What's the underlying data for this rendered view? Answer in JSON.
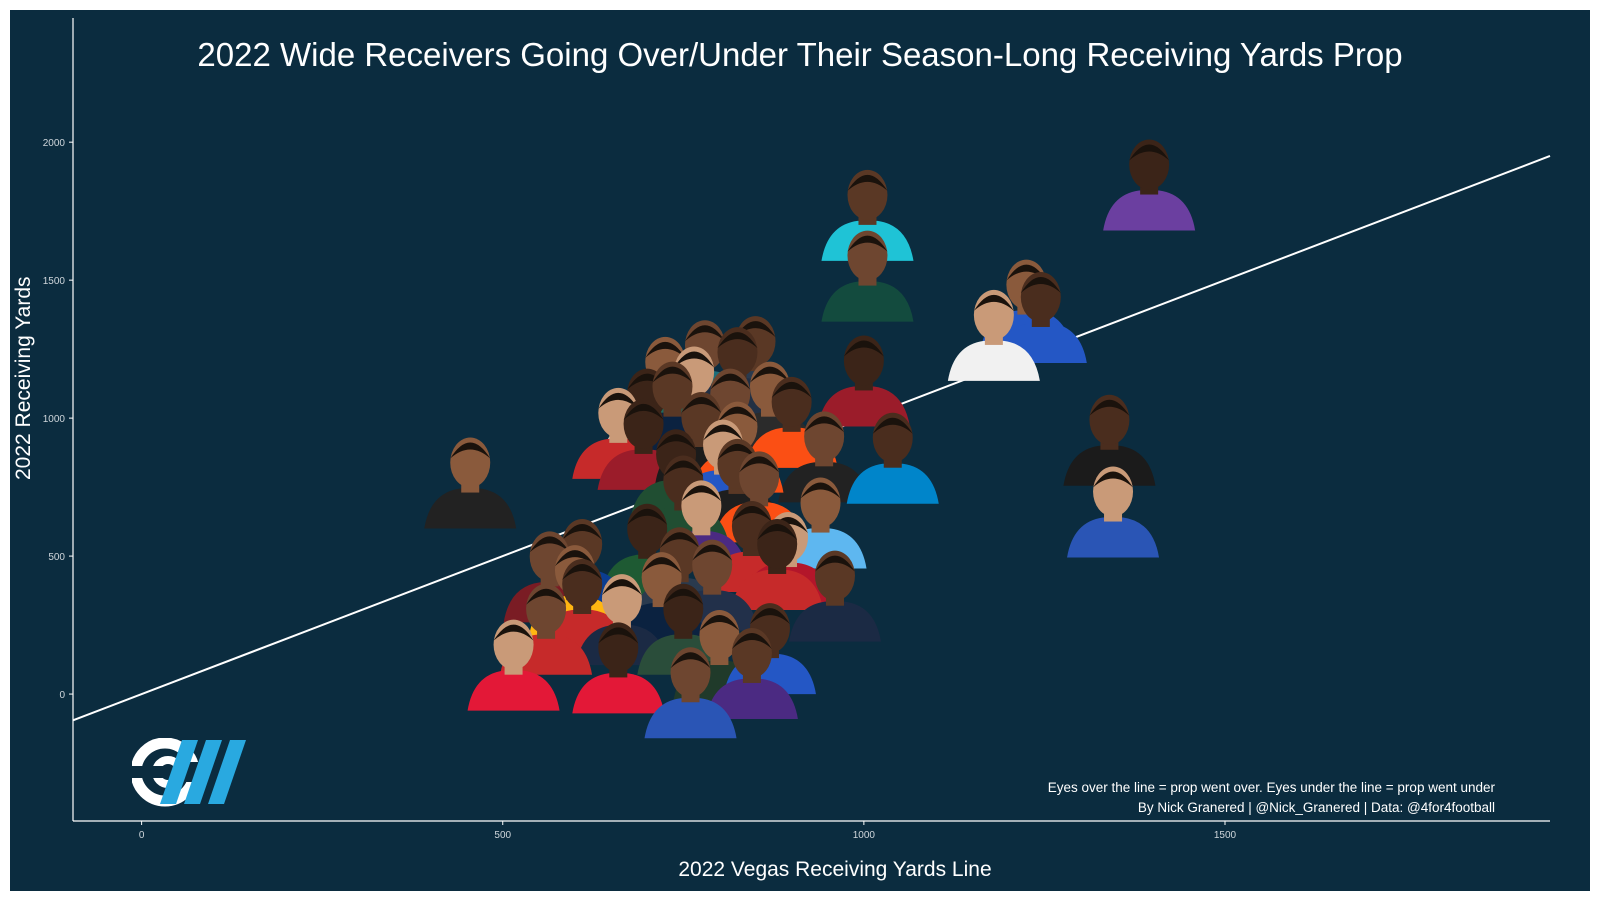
{
  "header": {
    "title": "2022 Wide Receivers Going Over/Under Their Season-Long Receiving Yards Prop"
  },
  "footer": {
    "note_line1": "Eyes over the line = prop went over. Eyes under the line = prop went under",
    "note_line2": "By Nick Granered | @Nick_Granered | Data: @4for4football"
  },
  "logo": {
    "icon": "cw-logo-icon",
    "colors": [
      "#ffffff",
      "#29a9e0"
    ]
  },
  "colors": {
    "background": "#0b2c3f",
    "text": "#ffffff",
    "axis": "#ffffff",
    "tick_text": "#cfd6db"
  },
  "chart_data": {
    "type": "scatter",
    "title": "2022 Wide Receivers Going Over/Under Their Season-Long Receiving Yards Prop",
    "xlabel": "2022 Vegas Receiving Yards Line",
    "ylabel": "2022 Receiving Yards",
    "xlim": [
      -95,
      1950
    ],
    "ylim": [
      -460,
      2450
    ],
    "xticks": [
      0,
      500,
      1000,
      1500
    ],
    "yticks": [
      0,
      500,
      1000,
      1500,
      2000
    ],
    "grid": false,
    "reference_line": {
      "description": "y = x",
      "slope": 1,
      "intercept": 0
    },
    "marker": "player headshot",
    "points": [
      {
        "x": 1395,
        "y": 1890,
        "jersey": "#6b3fa0"
      },
      {
        "x": 1005,
        "y": 1780,
        "jersey": "#1fc3d6"
      },
      {
        "x": 1005,
        "y": 1560,
        "jersey": "#134b3e"
      },
      {
        "x": 1225,
        "y": 1455,
        "jersey": "#2457c5"
      },
      {
        "x": 1245,
        "y": 1410,
        "jersey": "#2457c5"
      },
      {
        "x": 1180,
        "y": 1345,
        "jersey": "#f1f1f1"
      },
      {
        "x": 1000,
        "y": 1180,
        "jersey": "#9b1c2a"
      },
      {
        "x": 850,
        "y": 1250,
        "jersey": "#2a3a4e"
      },
      {
        "x": 780,
        "y": 1235,
        "jersey": "#1d6e7a"
      },
      {
        "x": 725,
        "y": 1175,
        "jersey": "#1b2a44"
      },
      {
        "x": 825,
        "y": 1210,
        "jersey": "#223044"
      },
      {
        "x": 765,
        "y": 1140,
        "jersey": "#1f6a5e"
      },
      {
        "x": 700,
        "y": 1060,
        "jersey": "#f2f2f2"
      },
      {
        "x": 735,
        "y": 1085,
        "jersey": "#0b2240"
      },
      {
        "x": 815,
        "y": 1060,
        "jersey": "#0b2240"
      },
      {
        "x": 870,
        "y": 1085,
        "jersey": "#2b2b2b"
      },
      {
        "x": 900,
        "y": 1030,
        "jersey": "#fb4f14"
      },
      {
        "x": 660,
        "y": 990,
        "jersey": "#c62a2a"
      },
      {
        "x": 695,
        "y": 950,
        "jersey": "#9b1c2a"
      },
      {
        "x": 775,
        "y": 975,
        "jersey": "#1b1b1b"
      },
      {
        "x": 945,
        "y": 905,
        "jersey": "#222222"
      },
      {
        "x": 825,
        "y": 940,
        "jersey": "#fb4f14"
      },
      {
        "x": 1040,
        "y": 900,
        "jersey": "#0085ca"
      },
      {
        "x": 805,
        "y": 875,
        "jersey": "#2457c5"
      },
      {
        "x": 740,
        "y": 840,
        "jersey": "#204e32"
      },
      {
        "x": 825,
        "y": 805,
        "jersey": "#1e1e1e"
      },
      {
        "x": 855,
        "y": 760,
        "jersey": "#fb4f14"
      },
      {
        "x": 940,
        "y": 665,
        "jersey": "#5eb7f0"
      },
      {
        "x": 750,
        "y": 745,
        "jersey": "#204e32"
      },
      {
        "x": 775,
        "y": 655,
        "jersey": "#4b2a82"
      },
      {
        "x": 700,
        "y": 570,
        "jersey": "#1e5a33"
      },
      {
        "x": 610,
        "y": 515,
        "jersey": "#0b3d91"
      },
      {
        "x": 565,
        "y": 470,
        "jersey": "#7a1c24"
      },
      {
        "x": 600,
        "y": 420,
        "jersey": "#ffb612"
      },
      {
        "x": 845,
        "y": 580,
        "jersey": "#c62a2a"
      },
      {
        "x": 895,
        "y": 540,
        "jersey": "#b3162a"
      },
      {
        "x": 880,
        "y": 515,
        "jersey": "#c62a2a"
      },
      {
        "x": 745,
        "y": 485,
        "jersey": "#2a3a4e"
      },
      {
        "x": 790,
        "y": 440,
        "jersey": "#22304a"
      },
      {
        "x": 720,
        "y": 395,
        "jersey": "#0b2240"
      },
      {
        "x": 610,
        "y": 370,
        "jersey": "#c62a2a"
      },
      {
        "x": 665,
        "y": 315,
        "jersey": "#1b2a44"
      },
      {
        "x": 750,
        "y": 280,
        "jersey": "#2a4d3a"
      },
      {
        "x": 960,
        "y": 400,
        "jersey": "#1b2a44"
      },
      {
        "x": 560,
        "y": 280,
        "jersey": "#c62a2a"
      },
      {
        "x": 800,
        "y": 185,
        "jersey": "#203a2a"
      },
      {
        "x": 870,
        "y": 210,
        "jersey": "#2457c5"
      },
      {
        "x": 515,
        "y": 150,
        "jersey": "#e31837"
      },
      {
        "x": 660,
        "y": 140,
        "jersey": "#e31837"
      },
      {
        "x": 845,
        "y": 120,
        "jersey": "#4b2a82"
      },
      {
        "x": 760,
        "y": 50,
        "jersey": "#2a55b5"
      },
      {
        "x": 455,
        "y": 810,
        "jersey": "#222222"
      },
      {
        "x": 1340,
        "y": 965,
        "jersey": "#1b1b1b"
      },
      {
        "x": 1345,
        "y": 705,
        "jersey": "#2a55b5"
      }
    ]
  }
}
